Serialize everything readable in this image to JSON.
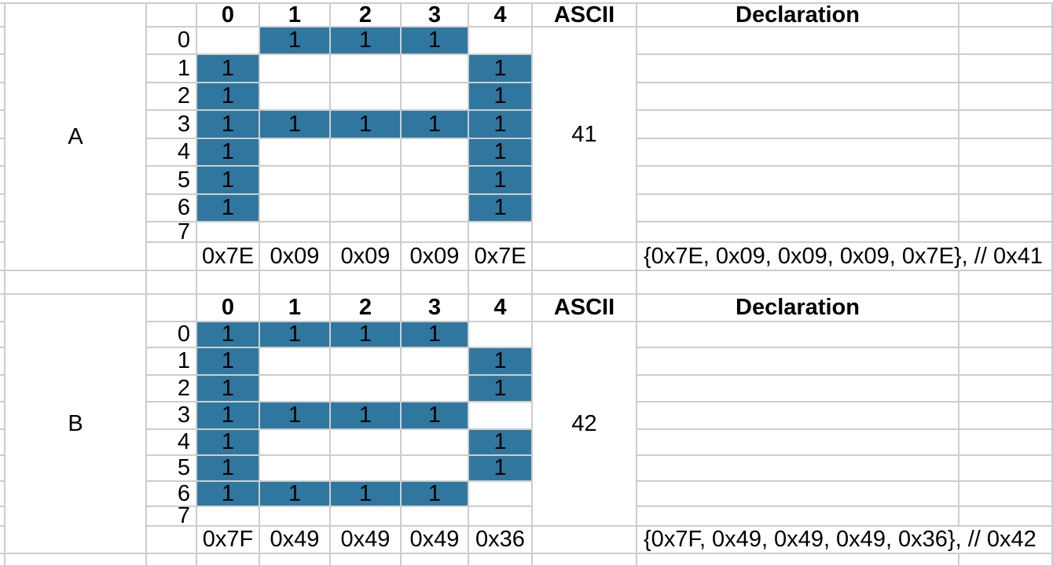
{
  "sheet": {
    "column_headers": [
      "0",
      "1",
      "2",
      "3",
      "4"
    ],
    "ascii_header": "ASCII",
    "declaration_header": "Declaration",
    "row_labels": [
      "0",
      "1",
      "2",
      "3",
      "4",
      "5",
      "6",
      "7"
    ],
    "filled_cell_text": "1",
    "sections": [
      {
        "letter": "A",
        "ascii_code": "41",
        "bitmap": [
          [
            0,
            1,
            1,
            1,
            0
          ],
          [
            1,
            0,
            0,
            0,
            1
          ],
          [
            1,
            0,
            0,
            0,
            1
          ],
          [
            1,
            1,
            1,
            1,
            1
          ],
          [
            1,
            0,
            0,
            0,
            1
          ],
          [
            1,
            0,
            0,
            0,
            1
          ],
          [
            1,
            0,
            0,
            0,
            1
          ],
          [
            0,
            0,
            0,
            0,
            0
          ]
        ],
        "hex_values": [
          "0x7E",
          "0x09",
          "0x09",
          "0x09",
          "0x7E"
        ],
        "declaration": "{0x7E, 0x09, 0x09, 0x09, 0x7E}, // 0x41"
      },
      {
        "letter": "B",
        "ascii_code": "42",
        "bitmap": [
          [
            1,
            1,
            1,
            1,
            0
          ],
          [
            1,
            0,
            0,
            0,
            1
          ],
          [
            1,
            0,
            0,
            0,
            1
          ],
          [
            1,
            1,
            1,
            1,
            0
          ],
          [
            1,
            0,
            0,
            0,
            1
          ],
          [
            1,
            0,
            0,
            0,
            1
          ],
          [
            1,
            1,
            1,
            1,
            0
          ],
          [
            0,
            0,
            0,
            0,
            0
          ]
        ],
        "hex_values": [
          "0x7F",
          "0x49",
          "0x49",
          "0x49",
          "0x36"
        ],
        "declaration": "{0x7F, 0x49, 0x49, 0x49, 0x36}, // 0x42"
      }
    ],
    "colors": {
      "filled_cell": "#30779F",
      "gridline": "#CDCDCD",
      "background": "#FFFFFF",
      "text": "#000000"
    }
  }
}
